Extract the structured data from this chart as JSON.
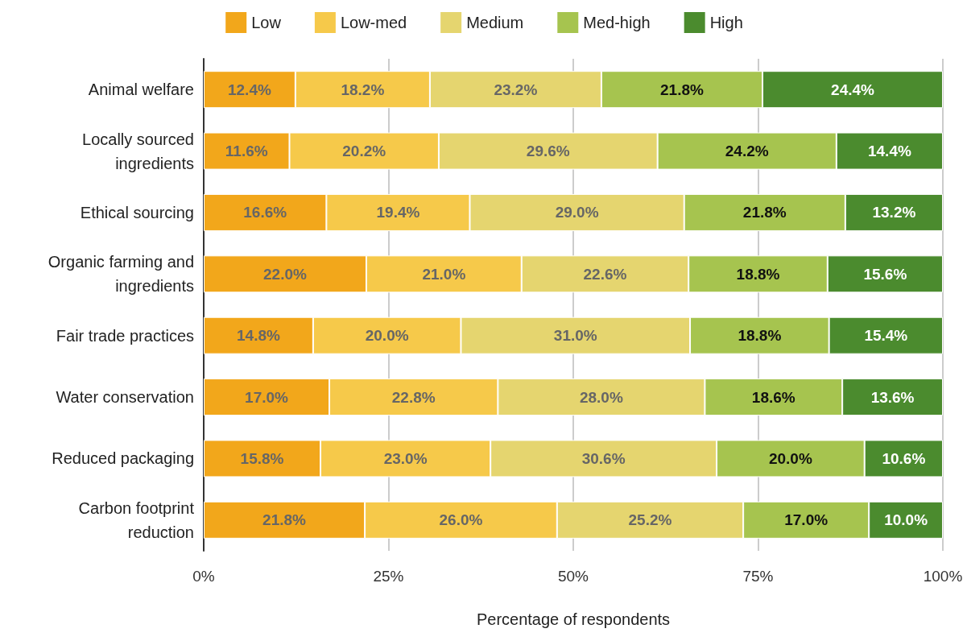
{
  "chart_data": {
    "type": "bar",
    "orientation": "horizontal",
    "stacked": true,
    "xlabel": "Percentage of respondents",
    "categories": [
      "Animal welfare",
      "Locally sourced\ningredients",
      "Ethical sourcing",
      "Organic farming and\ningredients",
      "Fair trade practices",
      "Water conservation",
      "Reduced packaging",
      "Carbon footprint\nreduction"
    ],
    "series": [
      {
        "name": "Low",
        "color": "#f2a71b",
        "values": [
          12.4,
          11.6,
          16.6,
          22.0,
          14.8,
          17.0,
          15.8,
          21.8
        ],
        "value_labels": [
          "12.4%",
          "11.6%",
          "16.6%",
          "22.0%",
          "14.8%",
          "17.0%",
          "15.8%",
          "21.8%"
        ]
      },
      {
        "name": "Low-med",
        "color": "#f6c94a",
        "values": [
          18.2,
          20.2,
          19.4,
          21.0,
          20.0,
          22.8,
          23.0,
          26.0
        ],
        "value_labels": [
          "18.2%",
          "20.2%",
          "19.4%",
          "21.0%",
          "20.0%",
          "22.8%",
          "23.0%",
          "26.0%"
        ]
      },
      {
        "name": "Medium",
        "color": "#e5d56f",
        "values": [
          23.2,
          29.6,
          29.0,
          22.6,
          31.0,
          28.0,
          30.6,
          25.2
        ],
        "value_labels": [
          "23.2%",
          "29.6%",
          "29.0%",
          "22.6%",
          "31.0%",
          "28.0%",
          "30.6%",
          "25.2%"
        ]
      },
      {
        "name": "Med-high",
        "color": "#a6c44f",
        "values": [
          21.8,
          24.2,
          21.8,
          18.8,
          18.8,
          18.6,
          20.0,
          17.0
        ],
        "value_labels": [
          "21.8%",
          "24.2%",
          "21.8%",
          "18.8%",
          "18.8%",
          "18.6%",
          "20.0%",
          "17.0%"
        ]
      },
      {
        "name": "High",
        "color": "#4b8b2e",
        "values": [
          24.4,
          14.4,
          13.2,
          15.6,
          15.4,
          13.6,
          10.6,
          10.0
        ],
        "value_labels": [
          "24.4%",
          "14.4%",
          "13.2%",
          "15.6%",
          "15.4%",
          "13.6%",
          "10.6%",
          "10.0%"
        ]
      }
    ],
    "xlim": [
      0,
      100
    ],
    "xticks": [
      {
        "value": 0,
        "label": "0%"
      },
      {
        "value": 25,
        "label": "25%"
      },
      {
        "value": 50,
        "label": "50%"
      },
      {
        "value": 75,
        "label": "75%"
      },
      {
        "value": 100,
        "label": "100%"
      }
    ],
    "grid": "x",
    "legend": "top"
  }
}
